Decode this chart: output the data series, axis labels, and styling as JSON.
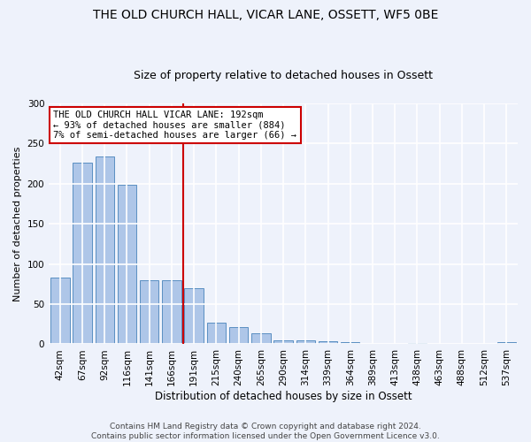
{
  "title": "THE OLD CHURCH HALL, VICAR LANE, OSSETT, WF5 0BE",
  "subtitle": "Size of property relative to detached houses in Ossett",
  "xlabel": "Distribution of detached houses by size in Ossett",
  "ylabel": "Number of detached properties",
  "categories": [
    "42sqm",
    "67sqm",
    "92sqm",
    "116sqm",
    "141sqm",
    "166sqm",
    "191sqm",
    "215sqm",
    "240sqm",
    "265sqm",
    "290sqm",
    "314sqm",
    "339sqm",
    "364sqm",
    "389sqm",
    "413sqm",
    "438sqm",
    "463sqm",
    "488sqm",
    "512sqm",
    "537sqm"
  ],
  "values": [
    83,
    226,
    234,
    199,
    80,
    80,
    70,
    27,
    21,
    14,
    5,
    5,
    4,
    3,
    0,
    0,
    2,
    0,
    0,
    0,
    3
  ],
  "bar_color": "#aec6e8",
  "bar_edge_color": "#5a8fc2",
  "reference_line_label": "THE OLD CHURCH HALL VICAR LANE: 192sqm",
  "annotation_line1": "← 93% of detached houses are smaller (884)",
  "annotation_line2": "7% of semi-detached houses are larger (66) →",
  "annotation_box_color": "#ffffff",
  "annotation_box_edge_color": "#cc0000",
  "vline_color": "#cc0000",
  "vline_x_index": 6,
  "ylim": [
    0,
    300
  ],
  "yticks": [
    0,
    50,
    100,
    150,
    200,
    250,
    300
  ],
  "footer1": "Contains HM Land Registry data © Crown copyright and database right 2024.",
  "footer2": "Contains public sector information licensed under the Open Government Licence v3.0.",
  "background_color": "#eef2fb",
  "grid_color": "#ffffff",
  "title_fontsize": 10,
  "subtitle_fontsize": 9,
  "xlabel_fontsize": 8.5,
  "ylabel_fontsize": 8,
  "tick_fontsize": 7.5,
  "annotation_fontsize": 7.5,
  "footer_fontsize": 6.5
}
